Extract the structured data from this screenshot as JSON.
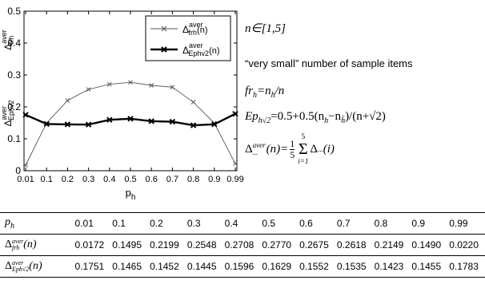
{
  "chart_data": {
    "type": "line",
    "x_categories": [
      "0.01",
      "0.1",
      "0.2",
      "0.3",
      "0.4",
      "0.5",
      "0.6",
      "0.7",
      "0.8",
      "0.9",
      "0.99"
    ],
    "xlabel": "p",
    "xlabel_sub": "h",
    "y_ticks": [
      "0",
      "0.1",
      "0.2",
      "0.3",
      "0.4",
      "0.5"
    ],
    "ylim": [
      0,
      0.5
    ],
    "ylabel_top": "Δ",
    "ylabel_top_sup": "aver",
    "ylabel_top_sub": "frh",
    "ylabel_bottom": "Δ",
    "ylabel_bottom_sup": "aver",
    "ylabel_bottom_sub": "Ephv2",
    "grid": false,
    "legend_position": "top-right",
    "series": [
      {
        "name": "Δ",
        "legend_sup": "aver",
        "legend_sub": "frh",
        "legend_arg": "(n)",
        "marker": "x",
        "style": "thin",
        "color": "#555555",
        "values": [
          0.0172,
          0.1495,
          0.2199,
          0.2548,
          0.2708,
          0.277,
          0.2675,
          0.2618,
          0.2149,
          0.149,
          0.022
        ]
      },
      {
        "name": "Δ",
        "legend_sup": "aver",
        "legend_sub": "Ephv2",
        "legend_arg": "(n)",
        "marker": "x",
        "style": "thick",
        "color": "#000000",
        "values": [
          0.1751,
          0.1465,
          0.1452,
          0.1445,
          0.1596,
          0.1629,
          0.1552,
          0.1535,
          0.1423,
          0.1455,
          0.1783
        ]
      }
    ]
  },
  "equations": {
    "range": "n∈[1,5]",
    "note": "“very small” number of sample items",
    "fr_lhs": "fr",
    "fr_sub": "h",
    "fr_rhs_a": "=n",
    "fr_rhs_b": "/n",
    "ep_lhs": "Ep",
    "ep_sub": "h√2",
    "ep_rhs": "=0.5+0.5(n",
    "ep_rhs_b": "−n",
    "ep_rhs_c": ")/(n+√2)",
    "ep_sub_bar": "h̄",
    "avg_lhs": "Δ",
    "avg_sup": "aver",
    "avg_sub": "...",
    "avg_arg": "(n)=",
    "avg_num": "1",
    "avg_den": "5",
    "avg_sum_top": "5",
    "avg_sum_bot": "i=1",
    "avg_sum": "Σ",
    "avg_tail": "Δ",
    "avg_tail_sub": "...",
    "avg_tail_arg": "(i)"
  },
  "table": {
    "header_label": "p",
    "header_label_sub": "h",
    "row1_label": "Δ",
    "row1_sup": "aver",
    "row1_sub": "frh",
    "row1_arg": "(n)",
    "row2_label": "Δ",
    "row2_sup": "aver",
    "row2_sub": "Eph√2",
    "row2_arg": "(n)",
    "header": [
      "0.01",
      "0.1",
      "0.2",
      "0.3",
      "0.4",
      "0.5",
      "0.6",
      "0.7",
      "0.8",
      "0.9",
      "0.99"
    ],
    "row1": [
      "0.0172",
      "0.1495",
      "0.2199",
      "0.2548",
      "0.2708",
      "0.2770",
      "0.2675",
      "0.2618",
      "0.2149",
      "0.1490",
      "0.0220"
    ],
    "row2": [
      "0.1751",
      "0.1465",
      "0.1452",
      "0.1445",
      "0.1596",
      "0.1629",
      "0.1552",
      "0.1535",
      "0.1423",
      "0.1455",
      "0.1783"
    ]
  }
}
